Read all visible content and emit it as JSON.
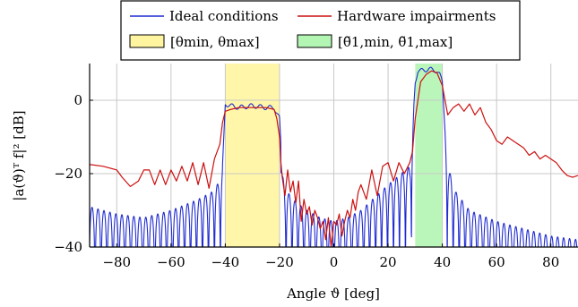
{
  "chart_data": {
    "type": "line",
    "xlabel": "Angle ϑ [deg]",
    "ylabel": "|a(ϑ)ᵀ f|² [dB]",
    "xlim": [
      -90,
      90
    ],
    "ylim": [
      -40,
      10
    ],
    "xticks": [
      "−80",
      "−60",
      "−40",
      "−20",
      "0",
      "20",
      "40",
      "60",
      "80"
    ],
    "yticks": [
      "0",
      "−20",
      "−40"
    ],
    "grid": true,
    "legend_position": "top-center",
    "bands": [
      {
        "label": "[θmin, θmax]",
        "range": [
          -40,
          -20
        ],
        "color": "#fff5a0"
      },
      {
        "label": "[θ̃1,min, θ̃1,max]",
        "range": [
          30,
          40
        ],
        "color": "#b3f5b3"
      }
    ],
    "series": [
      {
        "name": "Ideal conditions",
        "color": "#1f2bd0",
        "envelope_x": [
          -90,
          -80,
          -70,
          -60,
          -50,
          -45,
          -42,
          -41,
          -40,
          -38,
          -35,
          -30,
          -25,
          -22,
          -20,
          -19,
          -18,
          -15,
          -10,
          -5,
          0,
          5,
          10,
          20,
          28,
          29,
          30,
          31,
          32,
          35,
          38,
          39,
          40,
          41,
          42,
          45,
          50,
          60,
          70,
          80,
          90
        ],
        "envelope_y": [
          -29,
          -31,
          -32,
          -30,
          -27,
          -25,
          -22,
          -18,
          -1,
          -1.5,
          -2,
          -1.5,
          -2,
          -2,
          -5,
          -20,
          -24,
          -27,
          -30,
          -32,
          -33,
          -32,
          -30,
          -23,
          -18,
          -8,
          5,
          8,
          8,
          8.5,
          8,
          7,
          5,
          -8,
          -18,
          -25,
          -30,
          -33,
          -35,
          -37,
          -38
        ],
        "lobes_between_deg": 2.2
      },
      {
        "name": "Hardware impairments",
        "color": "#cc1010",
        "x": [
          -90,
          -85,
          -80,
          -78,
          -75,
          -72,
          -70,
          -68,
          -66,
          -64,
          -62,
          -60,
          -58,
          -56,
          -54,
          -52,
          -50,
          -48,
          -46,
          -44,
          -42,
          -41,
          -40,
          -38,
          -35,
          -30,
          -25,
          -22,
          -21,
          -20,
          -19.5,
          -19,
          -18,
          -17,
          -16,
          -15,
          -14,
          -13,
          -12,
          -11,
          -10,
          -9,
          -8,
          -7,
          -6,
          -5,
          -4,
          -3,
          -2,
          -1,
          0,
          1,
          2,
          3,
          4,
          5,
          6,
          7,
          8,
          9,
          10,
          12,
          14,
          16,
          18,
          20,
          22,
          24,
          26,
          28,
          29,
          30,
          32,
          34,
          36,
          38,
          40,
          41,
          42,
          44,
          46,
          48,
          50,
          52,
          54,
          56,
          58,
          60,
          62,
          64,
          66,
          68,
          70,
          72,
          74,
          76,
          78,
          80,
          82,
          84,
          86,
          88,
          90
        ],
        "y": [
          -17.5,
          -18,
          -19,
          -21,
          -23.5,
          -22,
          -19,
          -19,
          -23,
          -19,
          -23,
          -19,
          -22,
          -18,
          -22,
          -17,
          -23,
          -17,
          -24,
          -16,
          -12,
          -6,
          -3,
          -2.5,
          -2,
          -2,
          -2,
          -2.5,
          -5,
          -10,
          -17,
          -21,
          -26,
          -19,
          -25,
          -22,
          -28,
          -22,
          -33,
          -27,
          -31,
          -29,
          -34,
          -30,
          -32,
          -35,
          -33,
          -38,
          -32,
          -40,
          -33,
          -34,
          -31,
          -37,
          -33,
          -30,
          -32,
          -27,
          -30,
          -25,
          -23,
          -27,
          -19,
          -26,
          -18,
          -17,
          -22,
          -17,
          -20,
          -17,
          -14,
          -5,
          5,
          7,
          8,
          7.5,
          4,
          0,
          -4,
          -2,
          -1,
          -3,
          -1,
          -4,
          -2,
          -6,
          -8,
          -11,
          -12,
          -10,
          -11,
          -12,
          -13,
          -15,
          -14,
          -16,
          -15,
          -16,
          -17,
          -19,
          -20.5,
          -21,
          -20.5
        ]
      }
    ]
  }
}
